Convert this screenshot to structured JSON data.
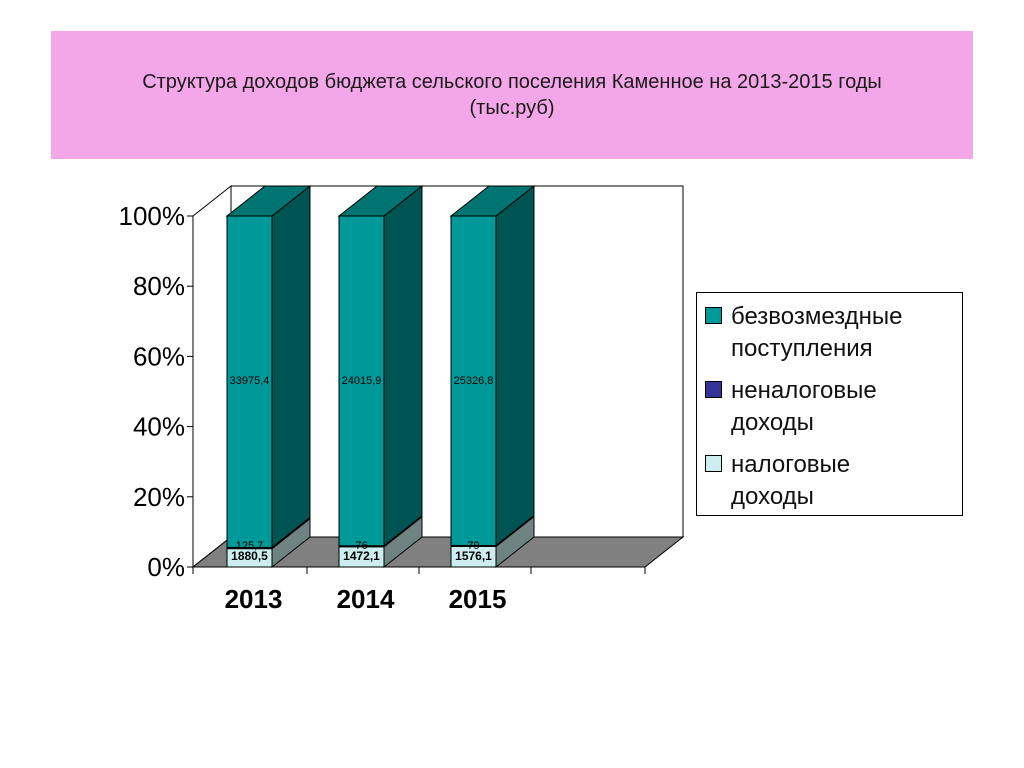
{
  "title": {
    "line1": "Структура доходов бюджета сельского поселения Каменное на 2013-2015 годы",
    "line2": "(тыс.руб)"
  },
  "colors": {
    "title_band": "#f4a7e8",
    "series_bezvozmezdnye": "#009999",
    "series_nenalogovye": "#333399",
    "series_nalogovye": "#cceeee",
    "floor": "#808080"
  },
  "chart_data": {
    "type": "bar",
    "stacked": "percent",
    "three_d": true,
    "categories": [
      "2013",
      "2014",
      "2015"
    ],
    "series": [
      {
        "name": "налоговые доходы",
        "values": [
          1880.5,
          1472.1,
          1576.1
        ],
        "labels": [
          "1880,5",
          "1472,1",
          "1576,1"
        ]
      },
      {
        "name": "неналоговые доходы",
        "values": [
          125.7,
          76,
          79
        ],
        "labels": [
          "125,7",
          "76",
          "79"
        ]
      },
      {
        "name": "безвозмездные поступления",
        "values": [
          33975.4,
          24015.9,
          25326.8
        ],
        "labels": [
          "33975,4",
          "24015,9",
          "25326,8"
        ]
      }
    ],
    "y_ticks": [
      "0%",
      "20%",
      "40%",
      "60%",
      "80%",
      "100%"
    ],
    "ylim": [
      0,
      100
    ],
    "legend_position": "right",
    "grid": false
  },
  "legend": {
    "items": [
      {
        "label_line1": "безвозмездные",
        "label_line2": "поступления",
        "color": "#009999"
      },
      {
        "label_line1": "неналоговые",
        "label_line2": "доходы",
        "color": "#333399"
      },
      {
        "label_line1": "налоговые",
        "label_line2": "доходы",
        "color": "#cceeee"
      }
    ]
  }
}
